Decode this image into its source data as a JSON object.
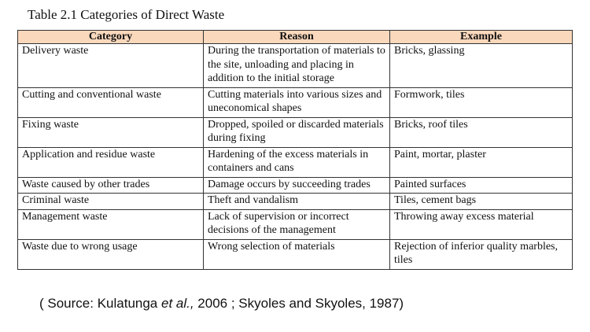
{
  "title": "Table 2.1 Categories of Direct Waste",
  "table": {
    "header": [
      "Category",
      "Reason",
      "Example"
    ],
    "rows": [
      [
        "Delivery waste",
        "During the transportation of materials to the site, unloading and placing in addition to the initial storage",
        "Bricks, glassing"
      ],
      [
        "Cutting and conventional waste",
        "Cutting materials into various sizes and uneconomical shapes",
        "Formwork, tiles"
      ],
      [
        "Fixing waste",
        "Dropped, spoiled or discarded materials during fixing",
        "Bricks, roof tiles"
      ],
      [
        "Application and residue waste",
        "Hardening of the excess materials in containers and cans",
        "Paint, mortar, plaster"
      ],
      [
        "Waste caused by other trades",
        "Damage occurs by succeeding trades",
        "Painted surfaces"
      ],
      [
        "Criminal waste",
        "Theft and vandalism",
        "Tiles, cement bags"
      ],
      [
        "Management waste",
        "Lack of supervision or incorrect decisions of the management",
        "Throwing away excess material"
      ],
      [
        "Waste due to wrong usage",
        "Wrong selection of materials",
        "Rejection of inferior quality marbles, tiles"
      ]
    ]
  },
  "source": {
    "before": "( Source: Kulatunga ",
    "italic": "et al.,",
    "after": " 2006 ; Skyoles and Skyoles, 1987)"
  }
}
